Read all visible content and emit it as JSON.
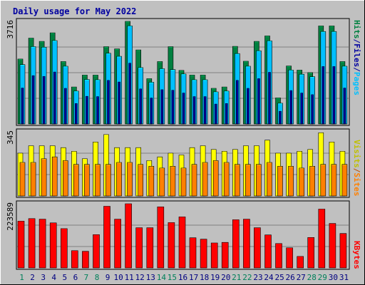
{
  "chart_data": {
    "type": "bar",
    "title": "Daily usage for May 2022",
    "categories": [
      "1",
      "2",
      "3",
      "4",
      "5",
      "6",
      "7",
      "8",
      "9",
      "10",
      "11",
      "12",
      "13",
      "14",
      "15",
      "16",
      "17",
      "18",
      "19",
      "20",
      "21",
      "22",
      "23",
      "24",
      "25",
      "26",
      "27",
      "28",
      "29",
      "30",
      "31"
    ],
    "weekend_days": [
      "1",
      "7",
      "8",
      "14",
      "15",
      "21",
      "22",
      "28",
      "29"
    ],
    "panels": [
      {
        "name": "hits-files-pages",
        "ymax_label": "3716",
        "ylim": [
          0,
          3716
        ],
        "right_labels": [
          {
            "text": "Hits",
            "color": "#008040"
          },
          {
            "text": "/",
            "color": "#0000a0"
          },
          {
            "text": "Files",
            "color": "#0000a0"
          },
          {
            "text": "/",
            "color": "#0000a0"
          },
          {
            "text": "Pages",
            "color": "#00c0ff"
          }
        ],
        "series": [
          {
            "name": "Hits",
            "color": "#008040",
            "values": [
              2350,
              3110,
              2990,
              3300,
              2260,
              1340,
              1770,
              1770,
              2800,
              2720,
              3716,
              2680,
              1640,
              2260,
              2800,
              1940,
              1770,
              1770,
              1290,
              1340,
              2810,
              2270,
              2990,
              3190,
              945,
              2100,
              1950,
              1860,
              3550,
              3550,
              2260
            ]
          },
          {
            "name": "Files",
            "color": "#00c0ff",
            "values": [
              2150,
              2800,
              2780,
              3020,
              2090,
              1190,
              1610,
              1600,
              2560,
              2450,
              3550,
              2040,
              1510,
              2000,
              1970,
              1810,
              1600,
              1600,
              1160,
              1190,
              2550,
              2090,
              2650,
              3010,
              750,
              1950,
              1800,
              1710,
              3350,
              3350,
              2090
            ]
          },
          {
            "name": "Pages",
            "color": "#0000a0",
            "values": [
              1300,
              1750,
              1720,
              1880,
              1290,
              740,
              1000,
              990,
              1580,
              1520,
              2200,
              1270,
              940,
              1240,
              1220,
              1120,
              990,
              990,
              720,
              740,
              1580,
              1290,
              1640,
              1870,
              460,
              1210,
              1120,
              1060,
              2080,
              2080,
              1300
            ]
          }
        ]
      },
      {
        "name": "visits-sites",
        "ymax_label": "345",
        "ylim": [
          0,
          345
        ],
        "right_labels": [
          {
            "text": "Visits",
            "color": "#c0c000"
          },
          {
            "text": "/",
            "color": "#c05000"
          },
          {
            "text": "Sites",
            "color": "#ff8000"
          }
        ],
        "series": [
          {
            "name": "Visits",
            "color": "#ffff00",
            "values": [
              230,
              270,
              270,
              270,
              260,
              240,
              200,
              290,
              330,
              260,
              260,
              260,
              190,
              210,
              230,
              220,
              260,
              270,
              250,
              240,
              250,
              270,
              270,
              300,
              230,
              230,
              240,
              250,
              340,
              290,
              240
            ]
          },
          {
            "name": "Sites",
            "color": "#ff8000",
            "values": [
              180,
              180,
              200,
              210,
              190,
              170,
              170,
              170,
              170,
              180,
              180,
              170,
              160,
              150,
              160,
              150,
              170,
              180,
              190,
              180,
              170,
              170,
              170,
              180,
              160,
              160,
              150,
              160,
              170,
              170,
              170
            ]
          }
        ]
      },
      {
        "name": "kbytes",
        "ymax_label": "223589",
        "ylim": [
          0,
          223589
        ],
        "right_labels": [
          {
            "text": "KBytes",
            "color": "#ff0000"
          }
        ],
        "series": [
          {
            "name": "KBytes",
            "color": "#ff0000",
            "values": [
              163000,
              172000,
              170000,
              157000,
              137000,
              60000,
              58000,
              116000,
              215000,
              170000,
              223589,
              140000,
              140000,
              213000,
              158000,
              178000,
              105000,
              100000,
              87000,
              89000,
              168000,
              170000,
              140000,
              115000,
              85000,
              70000,
              40000,
              106000,
              205000,
              155000,
              120000
            ]
          }
        ]
      }
    ]
  }
}
